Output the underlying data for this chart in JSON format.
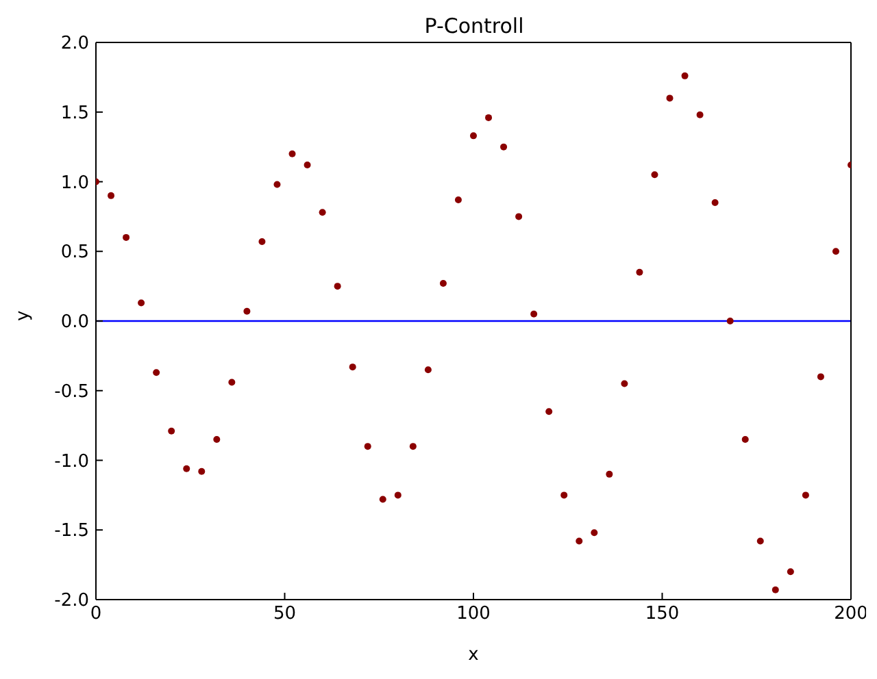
{
  "chart_data": {
    "type": "scatter",
    "title": "P-Controll",
    "xlabel": "x",
    "ylabel": "y",
    "x": [
      0,
      4,
      8,
      12,
      16,
      20,
      24,
      28,
      32,
      36,
      40,
      44,
      48,
      52,
      56,
      60,
      64,
      68,
      72,
      76,
      80,
      84,
      88,
      92,
      96,
      100,
      104,
      108,
      112,
      116,
      120,
      124,
      128,
      132,
      136,
      140,
      144,
      148,
      152,
      156,
      160,
      164,
      168,
      172,
      176,
      180,
      184,
      188,
      192,
      196,
      200
    ],
    "series": [
      {
        "color": "#8b0000",
        "values": [
          1.0,
          0.9,
          0.6,
          0.13,
          -0.37,
          -0.79,
          -1.06,
          -1.08,
          -0.85,
          -0.44,
          0.07,
          0.57,
          0.98,
          1.2,
          1.12,
          0.78,
          0.25,
          -0.33,
          -0.9,
          -1.28,
          -1.25,
          -0.9,
          -0.35,
          0.27,
          0.87,
          1.33,
          1.46,
          1.25,
          0.75,
          0.05,
          -0.65,
          -1.25,
          -1.58,
          -1.52,
          -1.1,
          -0.45,
          0.35,
          1.05,
          1.6,
          1.76,
          1.48,
          0.85,
          0.0,
          -0.85,
          -1.58,
          -1.93,
          -1.8,
          -1.25,
          -0.4,
          0.5,
          1.12
        ]
      }
    ],
    "xlim": [
      0,
      200
    ],
    "xticks": [
      0,
      50,
      100,
      150,
      200
    ],
    "ylim": [
      -2,
      2
    ],
    "yticks": [
      {
        "value": -2,
        "label": "-2.0"
      },
      {
        "value": -1.5,
        "label": "-1.5"
      },
      {
        "value": -1,
        "label": "-1.0"
      },
      {
        "value": -0.5,
        "label": "-0.5"
      },
      {
        "value": 0,
        "label": "0.0"
      },
      {
        "value": 0.5,
        "label": "0.5"
      },
      {
        "value": 1,
        "label": "1.0"
      },
      {
        "value": 1.5,
        "label": "1.5"
      },
      {
        "value": 2,
        "label": "2.0"
      }
    ],
    "ref_lines": [
      {
        "axis": "y",
        "value": 0,
        "color": "#0000ff"
      }
    ],
    "marker": "circle",
    "legend": false
  }
}
